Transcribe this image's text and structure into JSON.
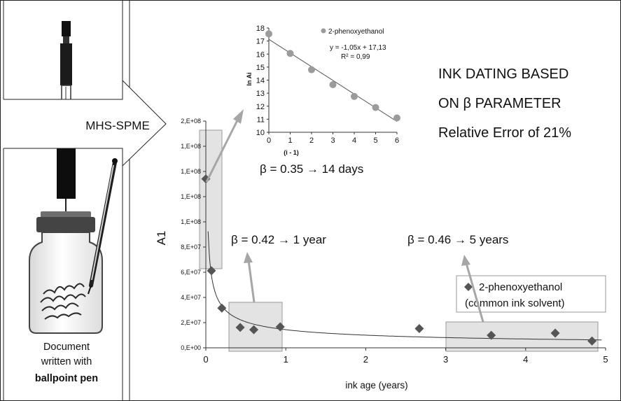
{
  "left_panel": {
    "caption_line1": "Document",
    "caption_line2": "written with",
    "caption_line3": "ballpoint pen"
  },
  "arrow": {
    "label": "MHS-SPME"
  },
  "headline": {
    "line1": "INK DATING BASED",
    "line2": "ON β PARAMETER",
    "line3": "Relative Error of 21%"
  },
  "callouts": {
    "inset_result": "β = 0.35 → 14 days",
    "mid_result": "β = 0.42 → 1 year",
    "right_result": "β = 0.46 → 5 years"
  },
  "colors": {
    "marker": "#555555",
    "inset_marker": "#9b9b9b",
    "highlight_box": "#e3e3e3",
    "arrow": "#a6a6a6"
  },
  "chart_data": [
    {
      "type": "scatter",
      "xlabel": "ink age (years)",
      "ylabel": "A1",
      "xlim": [
        0,
        5
      ],
      "ylim": [
        0,
        200000000
      ],
      "x_ticks": [
        "0",
        "1",
        "2",
        "3",
        "4",
        "5"
      ],
      "y_ticks": [
        "0,E+00",
        "2,E+07",
        "4,E+07",
        "6,E+07",
        "8,E+07",
        "1,E+08",
        "1,E+08",
        "1,E+08",
        "1,E+08",
        "2,E+08"
      ],
      "grid": false,
      "legend": {
        "placement": "right",
        "label_line1": "2-phenoxyethanol",
        "label_line2": "(common ink solvent)"
      },
      "series": [
        {
          "name": "2-phenoxyethanol",
          "x": [
            0.0,
            0.07,
            0.2,
            0.43,
            0.6,
            0.93,
            2.67,
            3.57,
            4.37,
            4.83
          ],
          "y": [
            149000000,
            68000000,
            35000000,
            18000000,
            16000000,
            18500000,
            17000000,
            11000000,
            13000000,
            6000000
          ]
        }
      ],
      "trend": {
        "kind": "power",
        "a": 16000000,
        "b": -0.52
      }
    },
    {
      "type": "scatter",
      "xlabel": "(i - 1)",
      "ylabel": "ln Ai",
      "xlim": [
        0,
        6
      ],
      "ylim": [
        10,
        18
      ],
      "x_ticks": [
        "0",
        "1",
        "2",
        "3",
        "4",
        "5",
        "6"
      ],
      "y_ticks": [
        "10",
        "11",
        "12",
        "13",
        "14",
        "15",
        "16",
        "17",
        "18"
      ],
      "grid": false,
      "legend": {
        "placement": "top-right",
        "label": "2-phenoxyethanol"
      },
      "equation": "y = -1,05x + 17,13",
      "r_squared": "R² = 0,99",
      "series": [
        {
          "name": "2-phenoxyethanol",
          "x": [
            0,
            1,
            2,
            3,
            4,
            5,
            6
          ],
          "y": [
            17.55,
            16.05,
            14.8,
            13.65,
            12.75,
            11.9,
            11.1
          ]
        }
      ],
      "fit": {
        "slope": -1.05,
        "intercept": 17.13
      }
    }
  ]
}
